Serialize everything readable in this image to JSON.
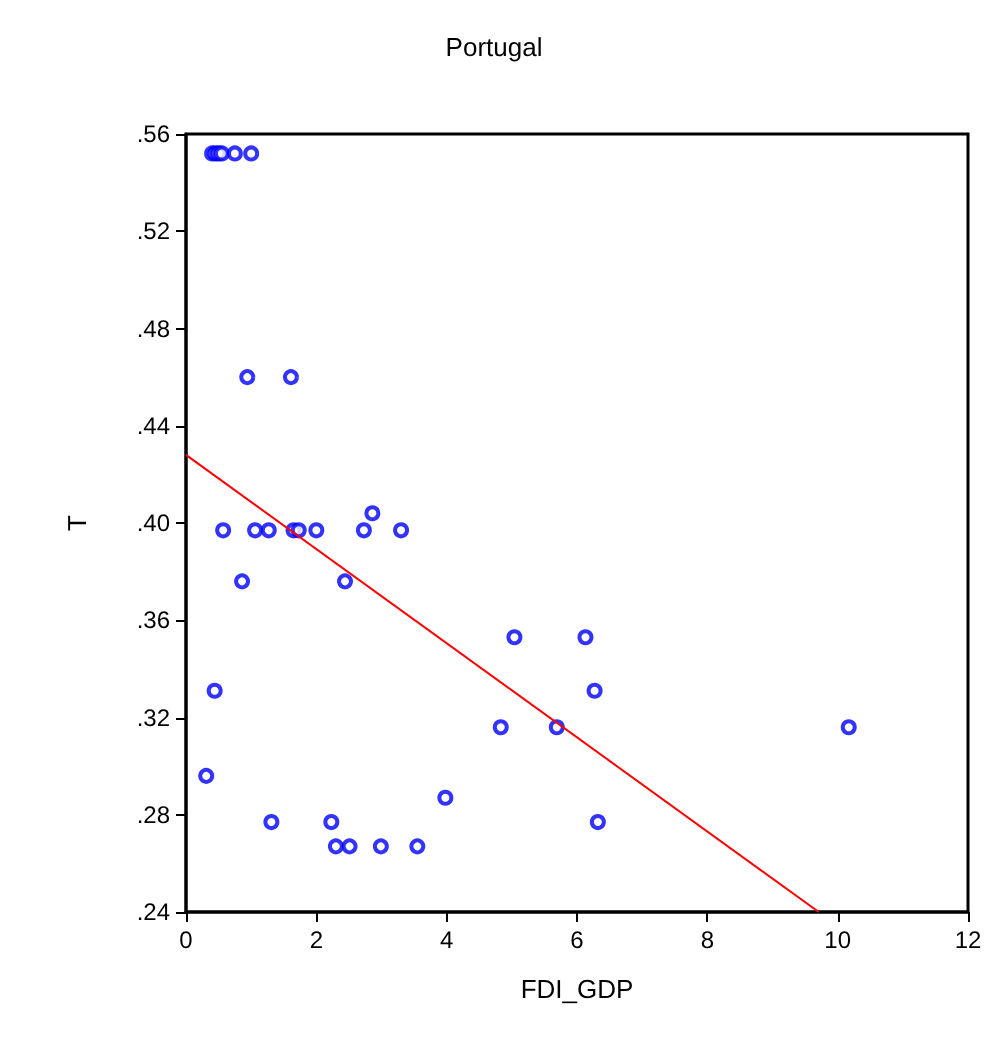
{
  "chart_data": {
    "type": "scatter",
    "title": "Portugal",
    "xlabel": "FDI_GDP",
    "ylabel": "T",
    "xlim": [
      0,
      12
    ],
    "xticks": [
      0,
      2,
      4,
      6,
      8,
      10,
      12
    ],
    "ylim": [
      0.24,
      0.56
    ],
    "yticks": [
      {
        "value": 0.24,
        "label": ".24"
      },
      {
        "value": 0.28,
        "label": ".28"
      },
      {
        "value": 0.32,
        "label": ".32"
      },
      {
        "value": 0.36,
        "label": ".36"
      },
      {
        "value": 0.4,
        "label": ".40"
      },
      {
        "value": 0.44,
        "label": ".44"
      },
      {
        "value": 0.48,
        "label": ".48"
      },
      {
        "value": 0.52,
        "label": ".52"
      },
      {
        "value": 0.56,
        "label": ".56"
      }
    ],
    "grid": false,
    "marker": "circle",
    "series": [
      {
        "type": "scatter",
        "color": "#0000ff",
        "x": [
          0.4,
          0.45,
          0.5,
          0.55,
          0.75,
          1.0,
          0.94,
          1.61,
          0.57,
          1.06,
          1.27,
          1.65,
          1.73,
          2.0,
          2.73,
          3.3,
          2.86,
          0.86,
          2.44,
          5.04,
          6.13,
          0.44,
          6.27,
          4.83,
          5.69,
          10.17,
          0.31,
          3.98,
          1.31,
          2.23,
          6.32,
          2.3,
          2.51,
          2.99,
          3.55
        ],
        "values": [
          0.552,
          0.552,
          0.552,
          0.552,
          0.552,
          0.552,
          0.46,
          0.46,
          0.397,
          0.397,
          0.397,
          0.397,
          0.397,
          0.397,
          0.397,
          0.397,
          0.404,
          0.376,
          0.376,
          0.353,
          0.353,
          0.331,
          0.331,
          0.316,
          0.316,
          0.316,
          0.296,
          0.287,
          0.277,
          0.277,
          0.277,
          0.267,
          0.267,
          0.267,
          0.267
        ]
      },
      {
        "type": "line",
        "color": "#ff0000",
        "marker": "none",
        "line_style": "solid",
        "x": [
          0,
          9.71
        ],
        "values": [
          0.428,
          0.24
        ]
      }
    ]
  }
}
